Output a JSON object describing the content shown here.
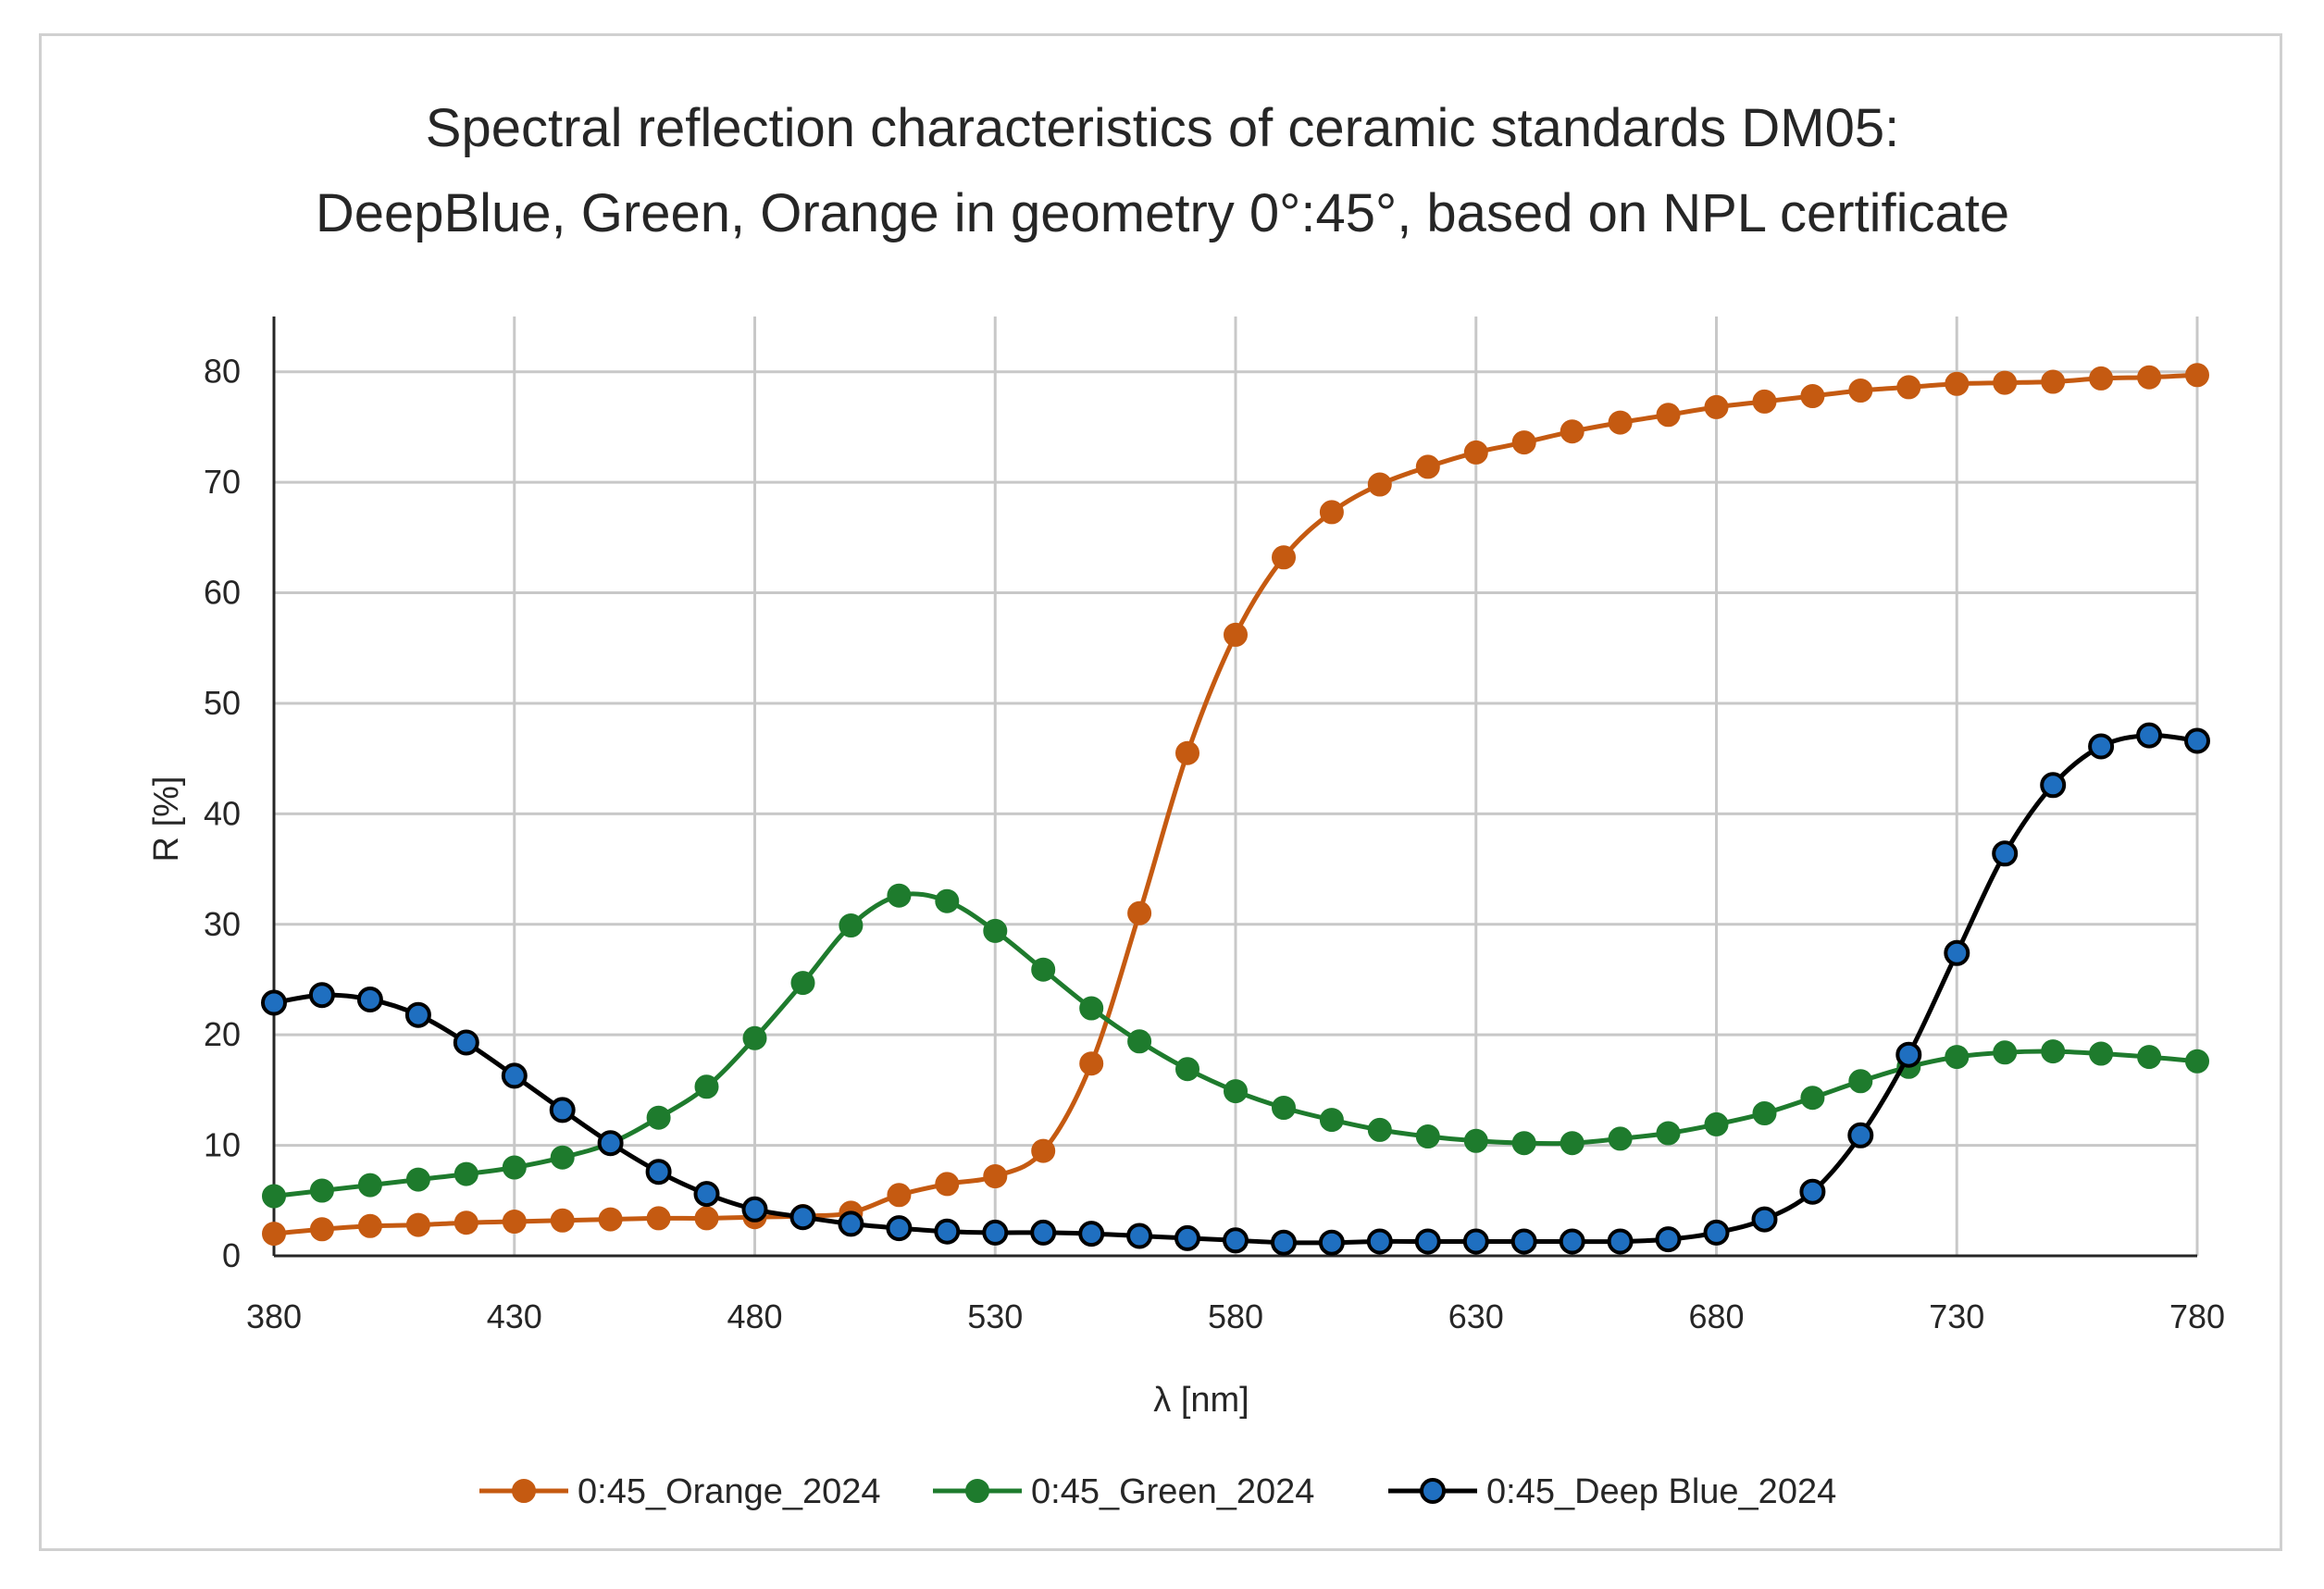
{
  "chart_data": {
    "type": "line",
    "title": [
      "Spectral reflection characteristics of ceramic standards DM05:",
      "DeepBlue, Green, Orange in geometry 0°:45°, based on NPL certificate"
    ],
    "xlabel": "λ [nm]",
    "ylabel": "R [%]",
    "xlim": [
      380,
      780
    ],
    "ylim": [
      0,
      85
    ],
    "xticks": [
      380,
      430,
      480,
      530,
      580,
      630,
      680,
      730,
      780
    ],
    "yticks": [
      0,
      10,
      20,
      30,
      40,
      50,
      60,
      70,
      80
    ],
    "grid": true,
    "legend_position": "bottom",
    "x": [
      380,
      390,
      400,
      410,
      420,
      430,
      440,
      450,
      460,
      470,
      480,
      490,
      500,
      510,
      520,
      530,
      540,
      550,
      560,
      570,
      580,
      590,
      600,
      610,
      620,
      630,
      640,
      650,
      660,
      670,
      680,
      690,
      700,
      710,
      720,
      730,
      740,
      750,
      760,
      770,
      780
    ],
    "series": [
      {
        "name": "0:45_Orange_2024",
        "color": "#C55A11",
        "values": [
          2.0,
          2.4,
          2.7,
          2.8,
          3.0,
          3.1,
          3.2,
          3.3,
          3.4,
          3.4,
          3.5,
          3.6,
          3.9,
          5.5,
          6.5,
          7.2,
          9.5,
          17.4,
          31.0,
          45.5,
          56.2,
          63.2,
          67.3,
          69.8,
          71.4,
          72.7,
          73.6,
          74.6,
          75.4,
          76.1,
          76.8,
          77.3,
          77.8,
          78.3,
          78.6,
          78.9,
          79.0,
          79.1,
          79.4,
          79.5,
          79.7
        ]
      },
      {
        "name": "0:45_Green_2024",
        "color": "#1E7B2D",
        "values": [
          5.4,
          5.9,
          6.4,
          6.9,
          7.4,
          8.0,
          8.9,
          10.2,
          12.5,
          15.3,
          19.7,
          24.7,
          29.9,
          32.6,
          32.1,
          29.4,
          25.9,
          22.4,
          19.4,
          16.9,
          14.9,
          13.4,
          12.3,
          11.4,
          10.8,
          10.4,
          10.2,
          10.2,
          10.6,
          11.1,
          11.9,
          12.9,
          14.3,
          15.8,
          17.1,
          18.0,
          18.4,
          18.5,
          18.3,
          18.0,
          17.6
        ]
      },
      {
        "name": "0:45_Deep Blue_2024",
        "color": "#000000",
        "marker": "#1F6FC0",
        "values": [
          22.9,
          23.6,
          23.2,
          21.8,
          19.3,
          16.3,
          13.2,
          10.2,
          7.6,
          5.6,
          4.2,
          3.5,
          2.9,
          2.5,
          2.2,
          2.1,
          2.1,
          2.0,
          1.8,
          1.6,
          1.4,
          1.2,
          1.2,
          1.3,
          1.3,
          1.3,
          1.3,
          1.3,
          1.3,
          1.5,
          2.1,
          3.3,
          5.8,
          10.9,
          18.2,
          27.4,
          36.4,
          42.6,
          46.1,
          47.1,
          46.6
        ]
      }
    ]
  }
}
